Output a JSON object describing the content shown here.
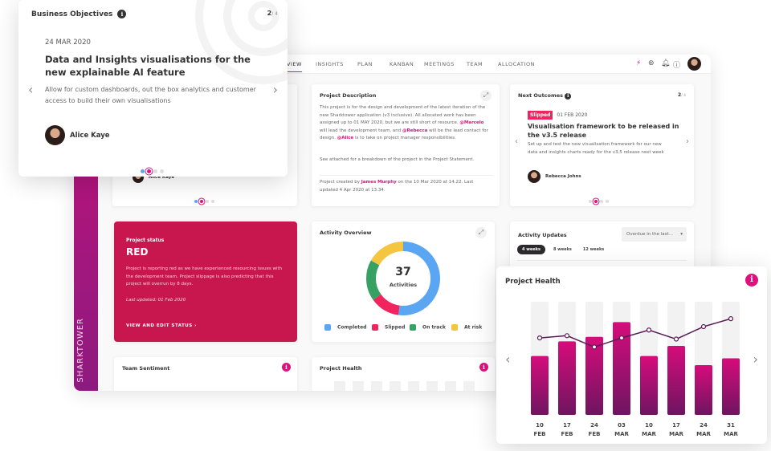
{
  "nav": {
    "tabs": [
      "VIEW",
      "INSIGHTS",
      "PLAN",
      "KANBAN",
      "MEETINGS",
      "TEAM",
      "ALLOCATION"
    ],
    "active": "VIEW",
    "icons": [
      "lightning-icon",
      "sync-icon",
      "bell-icon",
      "help-icon"
    ]
  },
  "sidebar": {
    "brand": "SHARKTOWER"
  },
  "behind_card": {
    "person": "Alice Kaye"
  },
  "project_description": {
    "title": "Project Description",
    "p1a": "This project is for the design and development of the latest iteration of the new Sharktower application (v3 inclusive). All allocated work has been assigned up to 01 MAY 2020, but we are still short of resource. ",
    "m1": "@Marcelo",
    "p1b": " will lead the development team, and ",
    "m2": "@Rebecca",
    "p1c": " will be the lead contact for design. ",
    "m3": "@Alice",
    "p1d": " is to take on project manager responsibilities.",
    "p2": "See attached for a breakdown of the project in the Project Statement.",
    "footer_a": "Project created by ",
    "footer_name": "James Murphy",
    "footer_b": " on the 10 Mar 2020 at 14.22. Last updated 4 Apr 2020 at 13.34."
  },
  "next_outcomes": {
    "title": "Next Outcomes",
    "page": "2",
    "total": "/ 4",
    "badge": "Slipped",
    "date": "01 FEB 2020",
    "heading": "Visualisation framework to be released in the v3.5 release",
    "body": "Set up and test the new visualisation framework for our new data and insights charts ready for the v3.5 release next week",
    "person": "Rebecca Johns"
  },
  "project_status": {
    "label": "Project status",
    "value": "RED",
    "body": "Project is reporting red as we have experienced resourcing issues with the development team. Project slippage is also predicting that this project will overrun by 8 days.",
    "updated": "Last updated: 01 Feb 2020",
    "action": "VIEW AND EDIT STATUS ›",
    "color": "#c8174f"
  },
  "activity_overview": {
    "title": "Activity Overview",
    "total": "37",
    "total_label": "Activities"
  },
  "activity_updates": {
    "title": "Activity Updates",
    "dropdown": "Overdue in the last...",
    "filters": [
      "4 weeks",
      "8 weeks",
      "12 weeks"
    ],
    "active_filter": "4 weeks"
  },
  "team_sentiment": {
    "title": "Team Sentiment"
  },
  "project_health_small": {
    "title": "Project Health"
  },
  "business_objectives": {
    "title": "Business Objectives",
    "page": "2",
    "total": "/ 4",
    "date": "24 MAR 2020",
    "heading": "Data and Insights visualisations for the new explainable AI feature",
    "body": "Allow for custom dashboards, out the box analytics and customer access to build their own visualisations",
    "person": "Alice Kaye"
  },
  "chart_data": [
    {
      "type": "pie",
      "title": "Activity Overview",
      "categories": [
        "Completed",
        "Slipped",
        "On track",
        "At risk"
      ],
      "values": [
        52,
        13,
        18,
        17
      ],
      "colors": [
        "#5aa6f2",
        "#f0245f",
        "#37a063",
        "#f4c53f"
      ]
    },
    {
      "type": "bar",
      "title": "Project Health",
      "categories": [
        "10 FEB",
        "17 FEB",
        "24 FEB",
        "03 MAR",
        "10 MAR",
        "17 MAR",
        "24 MAR",
        "31 MAR"
      ],
      "ylim": [
        0,
        100
      ],
      "series": [
        {
          "type": "bar",
          "values": [
            52,
            65,
            69,
            82,
            52,
            61,
            44,
            50
          ]
        },
        {
          "type": "line",
          "values": [
            68,
            70,
            60,
            68,
            75,
            67,
            78,
            85
          ]
        }
      ],
      "colors": {
        "bar_top": "#d60c7b",
        "bar_bottom": "#6e1560",
        "track": "#f2f2f2",
        "line": "#5a1a55"
      }
    }
  ]
}
